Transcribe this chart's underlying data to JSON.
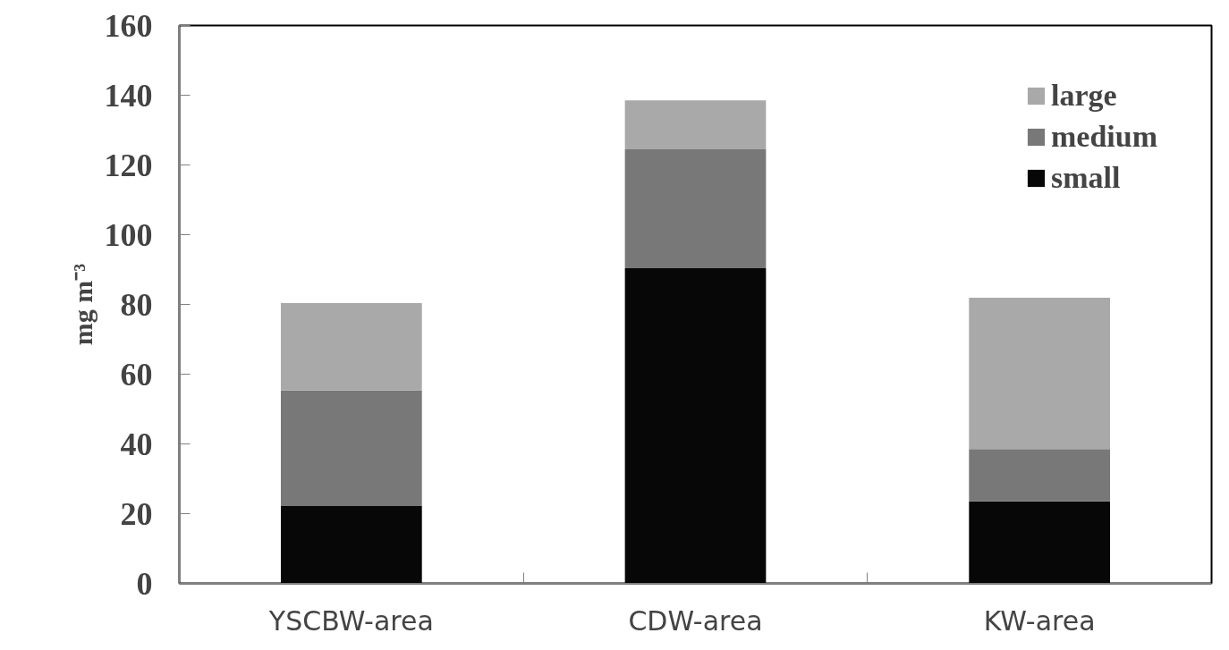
{
  "chart_data": {
    "type": "bar",
    "stacked": true,
    "ylabel": "mg m⁻³",
    "categories": [
      "YSCBW-area",
      "CDW-area",
      "KW-area"
    ],
    "series": [
      {
        "name": "small",
        "color": "#070707",
        "values": [
          22.2,
          90.4,
          23.5
        ]
      },
      {
        "name": "medium",
        "color": "#787878",
        "values": [
          33.1,
          34.1,
          15.0
        ]
      },
      {
        "name": "large",
        "color": "#a9a9a9",
        "values": [
          25.1,
          14.0,
          43.4
        ]
      }
    ],
    "ylim": [
      0,
      160
    ],
    "yticks": [
      0,
      20,
      40,
      60,
      80,
      100,
      120,
      140,
      160
    ],
    "grid": false,
    "legend": "top right"
  }
}
